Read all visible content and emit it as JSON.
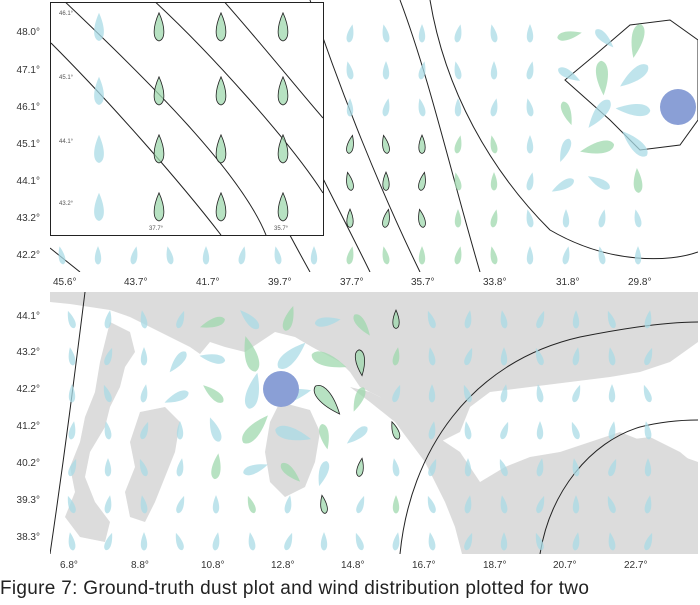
{
  "top_panel": {
    "y_ticks": [
      "48.0°",
      "47.1°",
      "46.1°",
      "45.1°",
      "44.1°",
      "43.2°",
      "42.2°"
    ],
    "x_ticks": [
      "45.6°",
      "43.7°",
      "41.7°",
      "39.7°",
      "37.7°",
      "35.7°",
      "33.8°",
      "31.8°",
      "29.8°"
    ],
    "inset": {
      "y_ticks": [
        "46.1°",
        "45.1°",
        "44.1°",
        "43.2°"
      ],
      "x_ticks": [
        "37.7°",
        "35.7°"
      ]
    },
    "marker_color": "#8a9fd6"
  },
  "bottom_panel": {
    "y_ticks": [
      "44.1°",
      "43.2°",
      "42.2°",
      "41.2°",
      "40.2°",
      "39.3°",
      "38.3°"
    ],
    "x_ticks": [
      "6.8°",
      "8.8°",
      "10.8°",
      "12.8°",
      "14.8°",
      "16.7°",
      "18.7°",
      "20.7°",
      "22.7°"
    ],
    "land_color": "#dcdcdc",
    "marker_color": "#8a9fd6"
  },
  "caption": "Figure 7: Ground-truth dust plot and wind distribution plotted for two"
}
